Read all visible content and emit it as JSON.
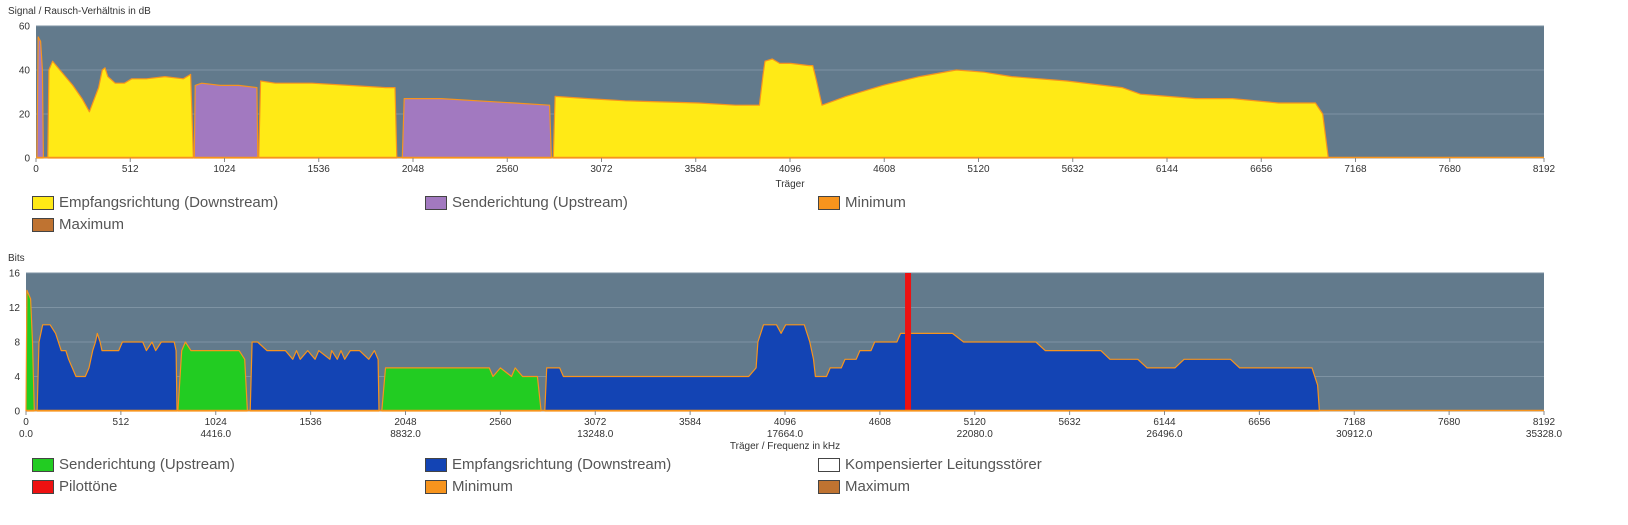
{
  "chart_data": [
    {
      "type": "area",
      "ylabel": "Signal / Rausch-Verhältnis in dB",
      "xlabel": "Träger",
      "xlim": [
        0,
        8192
      ],
      "ylim": [
        0,
        60
      ],
      "yticks": [
        "0",
        "20",
        "40",
        "60"
      ],
      "xticks": [
        "0",
        "512",
        "1024",
        "1536",
        "2048",
        "2560",
        "3072",
        "3584",
        "4096",
        "4608",
        "5120",
        "5632",
        "6144",
        "6656",
        "7168",
        "7680",
        "8192"
      ],
      "grid": true,
      "legend_position": "bottom",
      "series": [
        {
          "name": "Empfangsrichtung (Downstream)",
          "color": "#ffea16",
          "segments": [
            [
              [
                64,
                0
              ],
              [
                70,
                40
              ],
              [
                90,
                44
              ],
              [
                130,
                40
              ],
              [
                200,
                33
              ],
              [
                250,
                27
              ],
              [
                290,
                21
              ],
              [
                340,
                32
              ],
              [
                360,
                40
              ],
              [
                375,
                41
              ],
              [
                390,
                37
              ],
              [
                430,
                34
              ],
              [
                480,
                34
              ],
              [
                520,
                36
              ],
              [
                600,
                36
              ],
              [
                700,
                37
              ],
              [
                800,
                36
              ],
              [
                840,
                38
              ],
              [
                855,
                0
              ]
            ],
            [
              [
                1210,
                0
              ],
              [
                1220,
                35
              ],
              [
                1300,
                34
              ],
              [
                1500,
                34
              ],
              [
                1700,
                33
              ],
              [
                1900,
                32
              ],
              [
                1950,
                32
              ],
              [
                1960,
                0
              ]
            ],
            [
              [
                2810,
                0
              ],
              [
                2820,
                28
              ],
              [
                3000,
                27
              ],
              [
                3200,
                26
              ],
              [
                3600,
                25
              ],
              [
                3800,
                24
              ],
              [
                3930,
                24
              ],
              [
                3950,
                38
              ],
              [
                3960,
                44
              ],
              [
                4000,
                45
              ],
              [
                4040,
                43
              ],
              [
                4100,
                43
              ],
              [
                4200,
                42
              ],
              [
                4220,
                42
              ],
              [
                4240,
                35
              ],
              [
                4270,
                24
              ],
              [
                4400,
                28
              ],
              [
                4600,
                33
              ],
              [
                4800,
                37
              ],
              [
                5000,
                40
              ],
              [
                5150,
                39
              ],
              [
                5300,
                37
              ],
              [
                5600,
                35
              ],
              [
                5900,
                32
              ],
              [
                6000,
                29
              ],
              [
                6300,
                27
              ],
              [
                6500,
                27
              ],
              [
                6750,
                25
              ],
              [
                6950,
                25
              ],
              [
                6990,
                20
              ],
              [
                7020,
                0
              ]
            ]
          ]
        },
        {
          "name": "Senderichtung (Upstream)",
          "color": "#a279c0",
          "segments": [
            [
              [
                5,
                0
              ],
              [
                12,
                55
              ],
              [
                25,
                53
              ],
              [
                35,
                40
              ],
              [
                40,
                0
              ]
            ],
            [
              [
                860,
                0
              ],
              [
                865,
                33
              ],
              [
                900,
                34
              ],
              [
                1000,
                33
              ],
              [
                1100,
                33
              ],
              [
                1200,
                32
              ],
              [
                1205,
                0
              ]
            ],
            [
              [
                1990,
                0
              ],
              [
                2000,
                27
              ],
              [
                2200,
                27
              ],
              [
                2400,
                26
              ],
              [
                2600,
                25
              ],
              [
                2790,
                24
              ],
              [
                2800,
                0
              ]
            ]
          ]
        },
        {
          "name": "Minimum",
          "color": "#f7941d"
        },
        {
          "name": "Maximum",
          "color": "#bf7331"
        }
      ]
    },
    {
      "type": "area",
      "ylabel": "Bits",
      "xlabel": "Träger / Frequenz in kHz",
      "xlim": [
        0,
        8192
      ],
      "ylim": [
        0,
        16
      ],
      "yticks": [
        "0",
        "4",
        "8",
        "12",
        "16"
      ],
      "xticks": [
        "0",
        "512",
        "1024",
        "1536",
        "2048",
        "2560",
        "3072",
        "3584",
        "4096",
        "4608",
        "5120",
        "5632",
        "6144",
        "6656",
        "7168",
        "7680",
        "8192"
      ],
      "xticks_frequency": [
        "0.0",
        "4416.0",
        "8832.0",
        "13248.0",
        "17664.0",
        "22080.0",
        "26496.0",
        "30912.0",
        "35328.0"
      ],
      "grid": true,
      "legend_position": "bottom",
      "series": [
        {
          "name": "Senderichtung (Upstream)",
          "color": "#22cc22",
          "segments": [
            [
              [
                0,
                0
              ],
              [
                5,
                14
              ],
              [
                25,
                13
              ],
              [
                35,
                8
              ],
              [
                45,
                0
              ]
            ],
            [
              [
                820,
                0
              ],
              [
                840,
                7
              ],
              [
                860,
                8
              ],
              [
                890,
                7
              ],
              [
                1000,
                7
              ],
              [
                1150,
                7
              ],
              [
                1180,
                6
              ],
              [
                1195,
                0
              ]
            ],
            [
              [
                1920,
                0
              ],
              [
                1940,
                5
              ],
              [
                2000,
                5
              ],
              [
                2300,
                5
              ],
              [
                2500,
                5
              ],
              [
                2520,
                4
              ],
              [
                2560,
                5
              ],
              [
                2620,
                4
              ],
              [
                2640,
                5
              ],
              [
                2680,
                4
              ],
              [
                2760,
                4
              ],
              [
                2780,
                0
              ]
            ]
          ]
        },
        {
          "name": "Empfangsrichtung (Downstream)",
          "color": "#1344b4",
          "segments": [
            [
              [
                60,
                0
              ],
              [
                70,
                8
              ],
              [
                90,
                10
              ],
              [
                130,
                10
              ],
              [
                160,
                9
              ],
              [
                190,
                7
              ],
              [
                215,
                7
              ],
              [
                230,
                6
              ],
              [
                250,
                5
              ],
              [
                270,
                4
              ],
              [
                320,
                4
              ],
              [
                340,
                5
              ],
              [
                360,
                7
              ],
              [
                375,
                8
              ],
              [
                385,
                9
              ],
              [
                400,
                8
              ],
              [
                410,
                7
              ],
              [
                500,
                7
              ],
              [
                520,
                8
              ],
              [
                630,
                8
              ],
              [
                650,
                7
              ],
              [
                680,
                8
              ],
              [
                700,
                7
              ],
              [
                730,
                8
              ],
              [
                800,
                8
              ],
              [
                810,
                7
              ],
              [
                815,
                0
              ]
            ],
            [
              [
                1210,
                0
              ],
              [
                1220,
                8
              ],
              [
                1250,
                8
              ],
              [
                1300,
                7
              ],
              [
                1400,
                7
              ],
              [
                1440,
                6
              ],
              [
                1460,
                7
              ],
              [
                1480,
                6
              ],
              [
                1520,
                7
              ],
              [
                1560,
                6
              ],
              [
                1580,
                7
              ],
              [
                1640,
                6
              ],
              [
                1650,
                7
              ],
              [
                1680,
                6
              ],
              [
                1700,
                7
              ],
              [
                1720,
                6
              ],
              [
                1750,
                7
              ],
              [
                1800,
                7
              ],
              [
                1850,
                6
              ],
              [
                1880,
                7
              ],
              [
                1900,
                6
              ],
              [
                1905,
                0
              ]
            ],
            [
              [
                2800,
                0
              ],
              [
                2810,
                5
              ],
              [
                2880,
                5
              ],
              [
                2900,
                4
              ],
              [
                3000,
                4
              ],
              [
                3500,
                4
              ],
              [
                3900,
                4
              ],
              [
                3940,
                5
              ],
              [
                3950,
                8
              ],
              [
                3980,
                10
              ],
              [
                4050,
                10
              ],
              [
                4075,
                9
              ],
              [
                4100,
                10
              ],
              [
                4200,
                10
              ],
              [
                4230,
                8
              ],
              [
                4250,
                6
              ],
              [
                4260,
                4
              ],
              [
                4320,
                4
              ],
              [
                4340,
                5
              ],
              [
                4400,
                5
              ],
              [
                4420,
                6
              ],
              [
                4480,
                6
              ],
              [
                4500,
                7
              ],
              [
                4560,
                7
              ],
              [
                4580,
                8
              ],
              [
                4700,
                8
              ],
              [
                4720,
                9
              ],
              [
                4800,
                9
              ],
              [
                5000,
                9
              ],
              [
                5060,
                8
              ],
              [
                5200,
                8
              ],
              [
                5450,
                8
              ],
              [
                5500,
                7
              ],
              [
                5600,
                7
              ],
              [
                5800,
                7
              ],
              [
                5850,
                6
              ],
              [
                6000,
                6
              ],
              [
                6050,
                5
              ],
              [
                6200,
                5
              ],
              [
                6250,
                6
              ],
              [
                6400,
                6
              ],
              [
                6500,
                6
              ],
              [
                6550,
                5
              ],
              [
                6700,
                5
              ],
              [
                6800,
                5
              ],
              [
                6940,
                5
              ],
              [
                6970,
                3
              ],
              [
                6980,
                0
              ]
            ]
          ]
        },
        {
          "name": "Kompensierter Leitungsstörer",
          "color": "#ffffff"
        },
        {
          "name": "Pilottöne",
          "color": "#ee1111",
          "carriers": [
            4760
          ]
        },
        {
          "name": "Minimum",
          "color": "#f7941d"
        },
        {
          "name": "Maximum",
          "color": "#bf7331"
        }
      ]
    }
  ]
}
